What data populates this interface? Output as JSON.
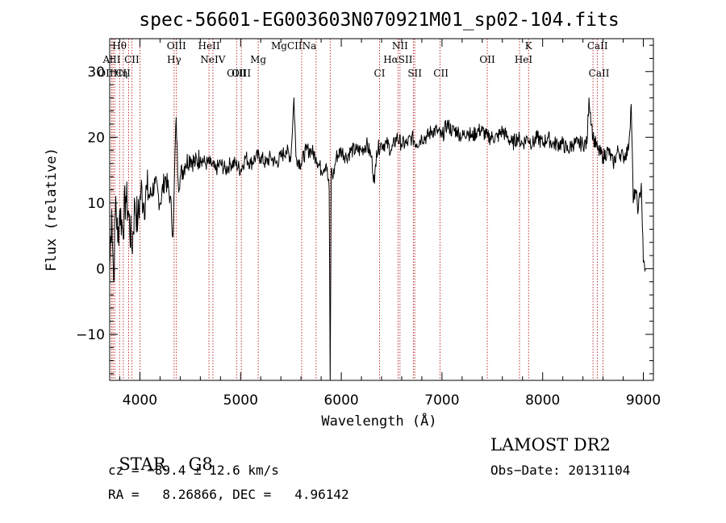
{
  "chart_data": {
    "type": "line",
    "title": "spec-56601-EG003603N070921M01_sp02-104.fits",
    "xlabel": "Wavelength (Å)",
    "ylabel": "Flux (relative)",
    "xlim": [
      3700,
      9100
    ],
    "ylim": [
      -17,
      35
    ],
    "x_ticks": [
      4000,
      5000,
      6000,
      7000,
      8000,
      9000
    ],
    "y_ticks": [
      -10,
      0,
      10,
      20,
      30
    ],
    "grid": false,
    "series": [
      {
        "x": [
          3700,
          3720,
          3740,
          3760,
          3780,
          3800,
          3830,
          3860,
          3890,
          3920,
          3950,
          3980,
          4010,
          4040,
          4070,
          4100,
          4150,
          4200,
          4250,
          4300,
          4330,
          4340,
          4360,
          4380,
          4400,
          4450,
          4500,
          4550,
          4600,
          4650,
          4700,
          4750,
          4800,
          4850,
          4900,
          4950,
          5000,
          5050,
          5100,
          5150,
          5200,
          5250,
          5300,
          5350,
          5400,
          5450,
          5500,
          5530,
          5550,
          5600,
          5650,
          5700,
          5750,
          5800,
          5850,
          5880,
          5890,
          5900,
          5920,
          5950,
          6000,
          6050,
          6100,
          6150,
          6200,
          6250,
          6300,
          6330,
          6350,
          6400,
          6450,
          6500,
          6550,
          6600,
          6650,
          6700,
          6750,
          6800,
          6850,
          6900,
          6950,
          7000,
          7050,
          7100,
          7150,
          7200,
          7250,
          7300,
          7350,
          7400,
          7450,
          7500,
          7550,
          7600,
          7650,
          7700,
          7750,
          7800,
          7850,
          7900,
          7950,
          8000,
          8050,
          8100,
          8150,
          8200,
          8250,
          8300,
          8350,
          8400,
          8440,
          8460,
          8500,
          8550,
          8600,
          8650,
          8700,
          8750,
          8800,
          8850,
          8880,
          8900,
          8920,
          8950,
          8980,
          9000,
          9020
        ],
        "y": [
          0,
          9,
          -2,
          11,
          4,
          9,
          6,
          11,
          8,
          3,
          10,
          7,
          12,
          10,
          12,
          11,
          13,
          10,
          14,
          11,
          5,
          12,
          23,
          13,
          14,
          16,
          17,
          16,
          17,
          16,
          16,
          15,
          16,
          15,
          16,
          16,
          15,
          17,
          16,
          17,
          17,
          16,
          17,
          16,
          17,
          18,
          17,
          26,
          17,
          16,
          18,
          18,
          17,
          15,
          16,
          12,
          -17,
          15,
          14,
          17,
          18,
          17,
          18,
          18,
          18,
          19,
          17,
          13,
          18,
          19,
          19,
          18,
          20,
          19,
          19,
          20,
          19,
          20,
          20,
          21,
          21,
          20,
          22,
          21,
          21,
          20,
          21,
          20,
          21,
          21,
          20,
          20,
          20,
          21,
          20,
          19,
          20,
          19,
          20,
          19,
          20,
          19,
          20,
          19,
          19,
          19,
          18,
          19,
          19,
          19,
          19,
          26,
          20,
          18,
          17,
          18,
          16,
          18,
          17,
          18,
          25,
          10,
          12,
          9,
          13,
          1,
          0
        ]
      }
    ],
    "lines": [
      {
        "label": "Hθ",
        "x": 3797,
        "row": 1
      },
      {
        "label": "AlII",
        "x": 3720,
        "row": 2
      },
      {
        "label": "OIIHη",
        "x": 3730,
        "row": 3
      },
      {
        "label": "CII",
        "x": 3833,
        "row": 3
      },
      {
        "label": "CII",
        "x": 3920,
        "row": 2
      },
      {
        "label": "OIII",
        "x": 4363,
        "row": 1
      },
      {
        "label": "Hγ",
        "x": 4340,
        "row": 2
      },
      {
        "label": "HeII",
        "x": 4686,
        "row": 1
      },
      {
        "label": "NeIV",
        "x": 4725,
        "row": 2
      },
      {
        "label": "OIII",
        "x": 4959,
        "row": 3
      },
      {
        "label": "OIII",
        "x": 5007,
        "row": 3
      },
      {
        "label": "Mg",
        "x": 5175,
        "row": 2
      },
      {
        "label": "MgCIINa",
        "x": 5528,
        "row": 1
      },
      {
        "label": "CI",
        "x": 6380,
        "row": 3
      },
      {
        "label": "NII",
        "x": 6583,
        "row": 1
      },
      {
        "label": "HαSII",
        "x": 6563,
        "row": 2
      },
      {
        "label": "SII",
        "x": 6730,
        "row": 3
      },
      {
        "label": "CII",
        "x": 6990,
        "row": 3
      },
      {
        "label": "OII",
        "x": 7450,
        "row": 2
      },
      {
        "label": "K",
        "x": 7860,
        "row": 1
      },
      {
        "label": "HeI",
        "x": 7810,
        "row": 2
      },
      {
        "label": "CaII",
        "x": 8545,
        "row": 1
      },
      {
        "label": "CaII",
        "x": 8560,
        "row": 3
      }
    ],
    "line_markers": [
      3720,
      3733,
      3750,
      3798,
      3835,
      3889,
      3920,
      4000,
      4340,
      4363,
      4686,
      4725,
      4960,
      5007,
      5175,
      5607,
      5750,
      5890,
      6380,
      6563,
      6583,
      6717,
      6730,
      6980,
      7450,
      7770,
      7860,
      8500,
      8542,
      8600
    ]
  },
  "info": {
    "class": "STAR",
    "subclass": "G8",
    "release": "LAMOST DR2",
    "cz": "cz = −89.4 ± 12.6 km/s",
    "obs_date": "Obs−Date: 20131104",
    "radec": "RA =   8.26866, DEC =   4.96142"
  }
}
